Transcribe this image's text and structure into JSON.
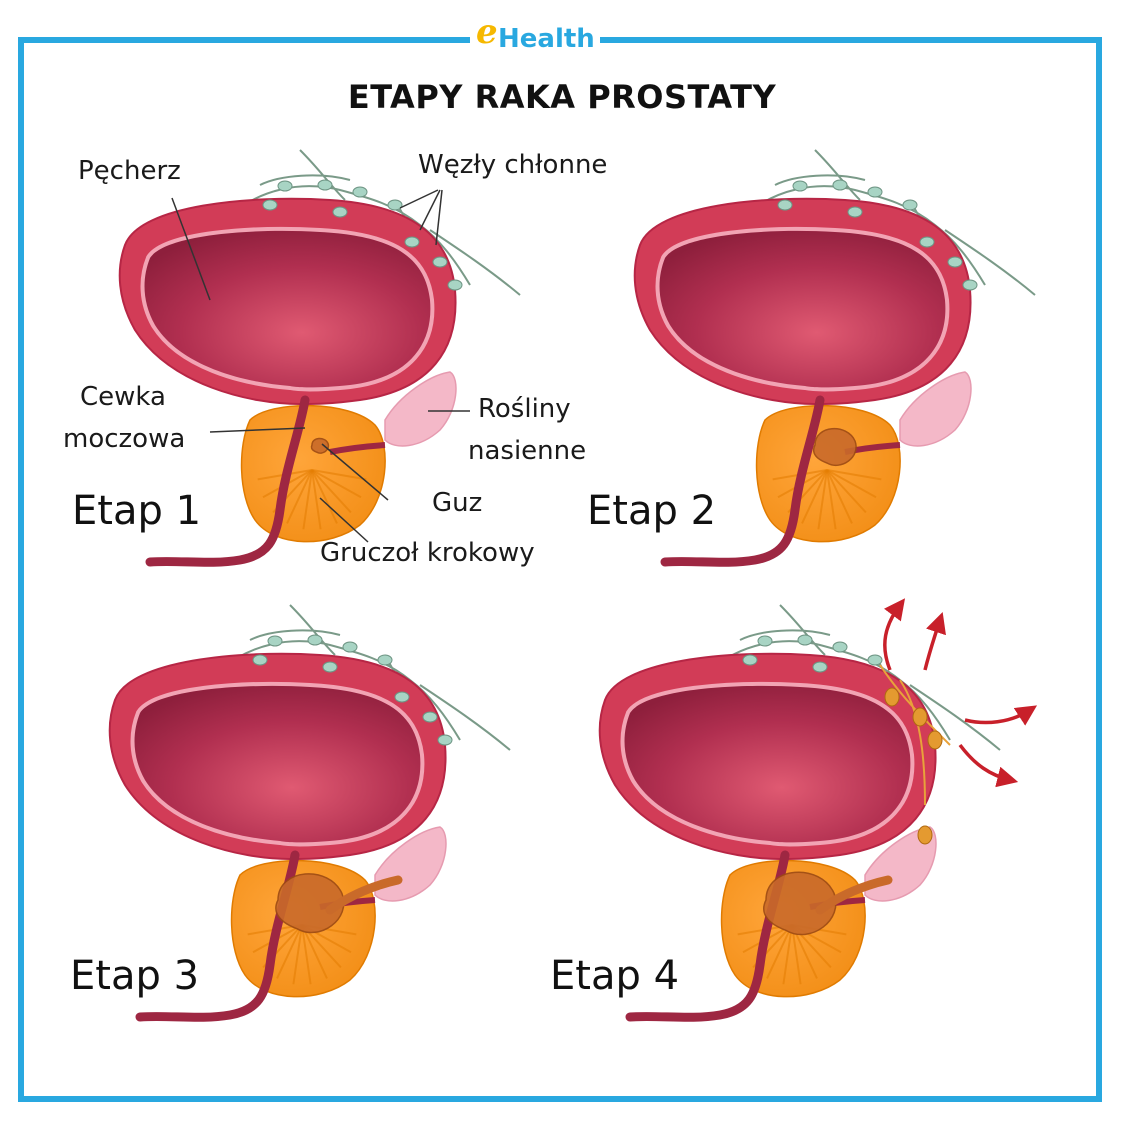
{
  "logo": {
    "mark": "e",
    "text": "Health"
  },
  "title": "ETAPY RAKA PROSTATY",
  "labels": {
    "bladder": "Pęcherz",
    "lymph_nodes": "Węzły chłonne",
    "urethra_line1": "Cewka",
    "urethra_line2": "moczowa",
    "seminal_line1": "Rośliny",
    "seminal_line2": "nasienne",
    "tumor": "Guz",
    "prostate": "Gruczoł krokowy"
  },
  "stages": [
    {
      "label": "Etap 1"
    },
    {
      "label": "Etap 2"
    },
    {
      "label": "Etap 3"
    },
    {
      "label": "Etap 4"
    }
  ],
  "colors": {
    "frame": "#29a8e0",
    "bladder_wall": "#d23c57",
    "bladder_inner": "#a5284a",
    "prostate": "#f7931e",
    "tumor": "#c96a2a",
    "seminal": "#f4b8c8",
    "lymph": "#a8d4c4",
    "metastasis_arrow": "#c8202a"
  }
}
